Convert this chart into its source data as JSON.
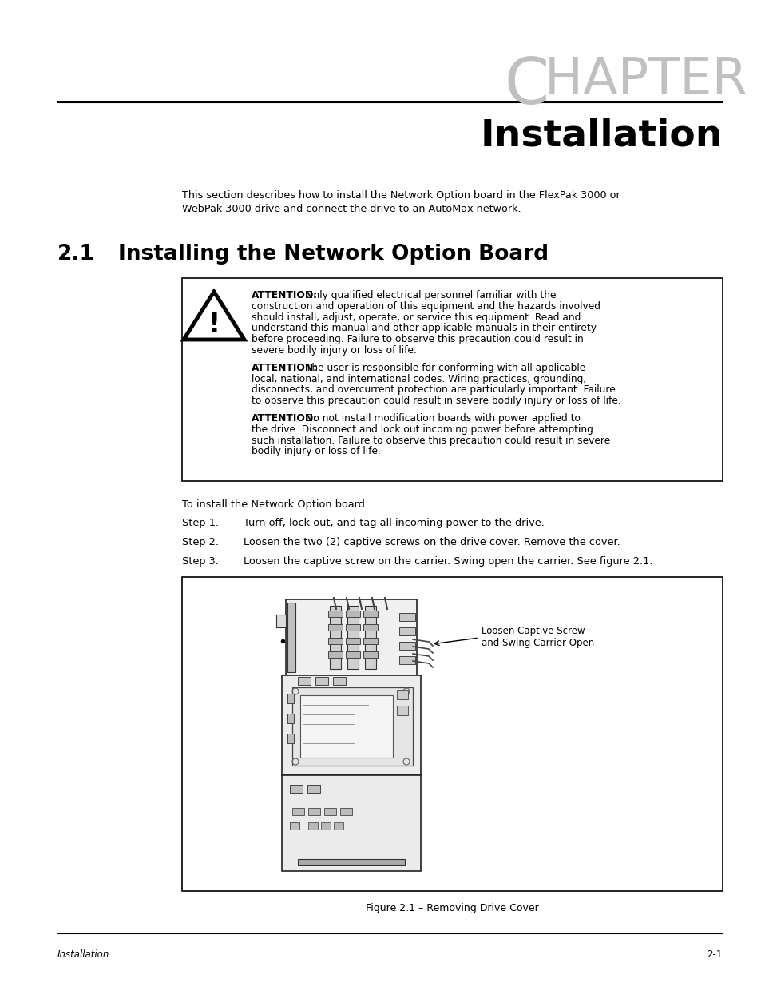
{
  "bg_color": "#ffffff",
  "chapter_color": "#c0c0c0",
  "chapter_C_fontsize": 58,
  "chapter_rest_fontsize": 46,
  "title_text": "Installation",
  "title_fontsize": 34,
  "section_num": "2.1",
  "section_title": "Installing the Network Option Board",
  "section_fontsize": 19,
  "intro_line1": "This section describes how to install the Network Option board in the FlexPak 3000 or",
  "intro_line2": "WebPak 3000 drive and connect the drive to an AutoMax network.",
  "attn1_bold": "ATTENTION:",
  "attn1_rest": " Only qualified electrical personnel familiar with the construction and operation of this equipment and the hazards involved should install, adjust, operate, or service this equipment. Read and understand this manual and other applicable manuals in their entirety before proceeding. Failure to observe this precaution could result in severe bodily injury or loss of life.",
  "attn2_bold": "ATTENTION:",
  "attn2_rest": " The user is responsible for conforming with all applicable local, national, and international codes. Wiring practices, grounding, disconnects, and overcurrent protection are particularly important. Failure to observe this precaution could result in severe bodily injury or loss of life.",
  "attn3_bold": "ATTENTION:",
  "attn3_rest": " Do not install modification boards with power applied to the drive. Disconnect and lock out incoming power before attempting such installation. Failure to observe this precaution could result in severe bodily injury or loss of life.",
  "install_intro": "To install the Network Option board:",
  "step1_num": "Step 1.",
  "step1_text": "Turn off, lock out, and tag all incoming power to the drive.",
  "step2_num": "Step 2.",
  "step2_text": "Loosen the two (2) captive screws on the drive cover. Remove the cover.",
  "step3_num": "Step 3.",
  "step3_text": "Loosen the captive screw on the carrier. Swing open the carrier. See figure 2.1.",
  "figure_caption": "Figure 2.1 – Removing Drive Cover",
  "callout_line1": "Loosen Captive Screw",
  "callout_line2": "and Swing Carrier Open",
  "footer_left": "Installation",
  "footer_right": "2-1"
}
